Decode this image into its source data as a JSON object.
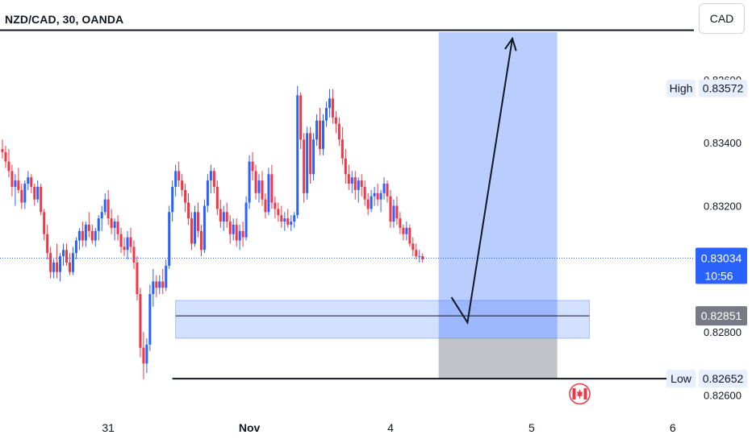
{
  "header": {
    "symbol_title": "NZD/CAD, 30, OANDA",
    "currency_button": "CAD"
  },
  "price_scale": {
    "high_label": "High",
    "high_value": "0.83572",
    "current_price": "0.83034",
    "countdown": "10:56",
    "marker_price": "0.82851",
    "low_label": "Low",
    "low_value": "0.82652"
  },
  "colors": {
    "up": "#2962ff",
    "down": "#f23645",
    "position_target": "#2962ff",
    "position_stop": "#787b86",
    "zone": "#2962ff",
    "current_price_badge": "#2962ff",
    "marker_badge": "#787b86",
    "event_flag": "#f23645"
  },
  "event_icon": "canada-flag-icon",
  "chart_data": {
    "type": "candlestick",
    "title": "NZD/CAD, 30, OANDA",
    "ylim": [
      0.8254,
      0.8375
    ],
    "yticks": [
      0.826,
      0.828,
      0.832,
      0.834,
      0.836
    ],
    "ytick_labels": [
      "0.82600",
      "0.82800",
      "0.83200",
      "0.83400",
      "0.83600"
    ],
    "x_ticks": [
      {
        "label": "31",
        "bar": 33
      },
      {
        "label": "Nov",
        "bar": 77
      },
      {
        "label": "4",
        "bar": 121
      },
      {
        "label": "5",
        "bar": 165
      },
      {
        "label": "6",
        "bar": 209
      }
    ],
    "grid": false,
    "candles": [
      [
        0.8338,
        0.8341,
        0.8335,
        0.8337
      ],
      [
        0.8337,
        0.8339,
        0.8332,
        0.8334
      ],
      [
        0.8334,
        0.8338,
        0.8329,
        0.8331
      ],
      [
        0.8331,
        0.8333,
        0.8323,
        0.8326
      ],
      [
        0.8326,
        0.833,
        0.832,
        0.8328
      ],
      [
        0.8328,
        0.8332,
        0.8324,
        0.8325
      ],
      [
        0.8325,
        0.8327,
        0.8319,
        0.8321
      ],
      [
        0.8321,
        0.8328,
        0.8319,
        0.8327
      ],
      [
        0.8327,
        0.8331,
        0.8325,
        0.8329
      ],
      [
        0.8329,
        0.833,
        0.8324,
        0.8326
      ],
      [
        0.8326,
        0.8327,
        0.832,
        0.8322
      ],
      [
        0.8322,
        0.8328,
        0.8321,
        0.8326
      ],
      [
        0.8326,
        0.8327,
        0.8317,
        0.8318
      ],
      [
        0.8318,
        0.8319,
        0.8309,
        0.8311
      ],
      [
        0.8311,
        0.8314,
        0.8303,
        0.8305
      ],
      [
        0.8305,
        0.8307,
        0.8297,
        0.8299
      ],
      [
        0.8299,
        0.8303,
        0.8297,
        0.8302
      ],
      [
        0.8302,
        0.8308,
        0.8297,
        0.8299
      ],
      [
        0.8299,
        0.8305,
        0.8296,
        0.8304
      ],
      [
        0.8304,
        0.8308,
        0.8301,
        0.8306
      ],
      [
        0.8306,
        0.8308,
        0.8301,
        0.8302
      ],
      [
        0.8302,
        0.8305,
        0.8298,
        0.8299
      ],
      [
        0.8299,
        0.8307,
        0.8298,
        0.8305
      ],
      [
        0.8305,
        0.831,
        0.8303,
        0.8309
      ],
      [
        0.8309,
        0.8313,
        0.8306,
        0.8312
      ],
      [
        0.8312,
        0.8315,
        0.8307,
        0.8309
      ],
      [
        0.8309,
        0.8315,
        0.8307,
        0.8314
      ],
      [
        0.8314,
        0.8318,
        0.831,
        0.8312
      ],
      [
        0.8312,
        0.8314,
        0.8308,
        0.8309
      ],
      [
        0.8309,
        0.8313,
        0.8307,
        0.8312
      ],
      [
        0.8312,
        0.8317,
        0.8309,
        0.8316
      ],
      [
        0.8316,
        0.832,
        0.8312,
        0.8318
      ],
      [
        0.8318,
        0.8324,
        0.8317,
        0.8322
      ],
      [
        0.8322,
        0.8325,
        0.8314,
        0.8316
      ],
      [
        0.8316,
        0.8319,
        0.8311,
        0.8313
      ],
      [
        0.8313,
        0.8316,
        0.8309,
        0.8315
      ],
      [
        0.8315,
        0.8317,
        0.8309,
        0.8311
      ],
      [
        0.8311,
        0.8313,
        0.8305,
        0.8307
      ],
      [
        0.8307,
        0.831,
        0.8304,
        0.8306
      ],
      [
        0.8306,
        0.8312,
        0.8303,
        0.831
      ],
      [
        0.831,
        0.8313,
        0.8305,
        0.8307
      ],
      [
        0.8307,
        0.8309,
        0.83,
        0.8302
      ],
      [
        0.8302,
        0.8304,
        0.829,
        0.8292
      ],
      [
        0.8292,
        0.8294,
        0.8272,
        0.8275
      ],
      [
        0.8275,
        0.828,
        0.8265,
        0.827
      ],
      [
        0.827,
        0.8278,
        0.8267,
        0.8276
      ],
      [
        0.8276,
        0.8295,
        0.8274,
        0.8292
      ],
      [
        0.8292,
        0.83,
        0.8288,
        0.8296
      ],
      [
        0.8296,
        0.8298,
        0.8291,
        0.8294
      ],
      [
        0.8294,
        0.8298,
        0.8292,
        0.8296
      ],
      [
        0.8296,
        0.83,
        0.8292,
        0.8294
      ],
      [
        0.8294,
        0.8303,
        0.8293,
        0.8301
      ],
      [
        0.8301,
        0.832,
        0.83,
        0.8318
      ],
      [
        0.8318,
        0.8328,
        0.8315,
        0.8326
      ],
      [
        0.8326,
        0.8333,
        0.8323,
        0.8331
      ],
      [
        0.8331,
        0.8334,
        0.8326,
        0.8328
      ],
      [
        0.8328,
        0.833,
        0.8323,
        0.8325
      ],
      [
        0.8325,
        0.8327,
        0.8318,
        0.8321
      ],
      [
        0.8321,
        0.8324,
        0.8314,
        0.8316
      ],
      [
        0.8316,
        0.8318,
        0.8306,
        0.8308
      ],
      [
        0.8308,
        0.832,
        0.8307,
        0.8318
      ],
      [
        0.8318,
        0.8321,
        0.831,
        0.8312
      ],
      [
        0.8312,
        0.8314,
        0.8304,
        0.8306
      ],
      [
        0.8306,
        0.8322,
        0.8305,
        0.832
      ],
      [
        0.832,
        0.833,
        0.8318,
        0.8328
      ],
      [
        0.8328,
        0.8333,
        0.8324,
        0.8331
      ],
      [
        0.8331,
        0.8332,
        0.8324,
        0.8326
      ],
      [
        0.8326,
        0.8328,
        0.8317,
        0.8319
      ],
      [
        0.8319,
        0.8322,
        0.8313,
        0.8315
      ],
      [
        0.8315,
        0.832,
        0.8312,
        0.8318
      ],
      [
        0.8318,
        0.8321,
        0.8313,
        0.8315
      ],
      [
        0.8315,
        0.8317,
        0.8308,
        0.8311
      ],
      [
        0.8311,
        0.8316,
        0.8309,
        0.8314
      ],
      [
        0.8314,
        0.8316,
        0.8307,
        0.8309
      ],
      [
        0.8309,
        0.8314,
        0.8306,
        0.8312
      ],
      [
        0.8312,
        0.8315,
        0.8307,
        0.831
      ],
      [
        0.831,
        0.8323,
        0.8309,
        0.8321
      ],
      [
        0.8321,
        0.8336,
        0.8319,
        0.8334
      ],
      [
        0.8334,
        0.8337,
        0.8328,
        0.8331
      ],
      [
        0.8331,
        0.8333,
        0.8322,
        0.8324
      ],
      [
        0.8324,
        0.833,
        0.8321,
        0.8328
      ],
      [
        0.8328,
        0.8331,
        0.832,
        0.8322
      ],
      [
        0.8322,
        0.8324,
        0.8316,
        0.8318
      ],
      [
        0.8318,
        0.8332,
        0.8317,
        0.833
      ],
      [
        0.833,
        0.8333,
        0.8319,
        0.8321
      ],
      [
        0.8321,
        0.8323,
        0.8316,
        0.8319
      ],
      [
        0.8319,
        0.8321,
        0.8315,
        0.8317
      ],
      [
        0.8317,
        0.832,
        0.8313,
        0.8315
      ],
      [
        0.8315,
        0.8318,
        0.8312,
        0.8316
      ],
      [
        0.8316,
        0.8319,
        0.8313,
        0.8314
      ],
      [
        0.8314,
        0.8317,
        0.8312,
        0.8315
      ],
      [
        0.8315,
        0.8318,
        0.8313,
        0.8317
      ],
      [
        0.8317,
        0.8358,
        0.8316,
        0.8355
      ],
      [
        0.8355,
        0.8356,
        0.8338,
        0.8341
      ],
      [
        0.8341,
        0.8343,
        0.8321,
        0.8324
      ],
      [
        0.8324,
        0.8345,
        0.8322,
        0.8343
      ],
      [
        0.8343,
        0.8345,
        0.8327,
        0.833
      ],
      [
        0.833,
        0.8343,
        0.8328,
        0.8341
      ],
      [
        0.8341,
        0.8349,
        0.8339,
        0.8347
      ],
      [
        0.8347,
        0.8351,
        0.8336,
        0.8338
      ],
      [
        0.8338,
        0.8349,
        0.8336,
        0.8347
      ],
      [
        0.8347,
        0.8353,
        0.8345,
        0.8351
      ],
      [
        0.8351,
        0.8357,
        0.8348,
        0.8354
      ],
      [
        0.8354,
        0.8357,
        0.8346,
        0.8348
      ],
      [
        0.8348,
        0.835,
        0.8343,
        0.8346
      ],
      [
        0.8346,
        0.8348,
        0.8339,
        0.8341
      ],
      [
        0.8341,
        0.8345,
        0.8333,
        0.8335
      ],
      [
        0.8335,
        0.8338,
        0.8327,
        0.833
      ],
      [
        0.833,
        0.8333,
        0.8325,
        0.8327
      ],
      [
        0.8327,
        0.8331,
        0.8324,
        0.8329
      ],
      [
        0.8329,
        0.8331,
        0.8322,
        0.8325
      ],
      [
        0.8325,
        0.8329,
        0.8321,
        0.8328
      ],
      [
        0.8328,
        0.833,
        0.8323,
        0.8326
      ],
      [
        0.8326,
        0.8328,
        0.832,
        0.8322
      ],
      [
        0.8322,
        0.8324,
        0.8317,
        0.8319
      ],
      [
        0.8319,
        0.8325,
        0.8318,
        0.8323
      ],
      [
        0.8323,
        0.8326,
        0.832,
        0.8324
      ],
      [
        0.8324,
        0.8327,
        0.832,
        0.8322
      ],
      [
        0.8322,
        0.8325,
        0.8318,
        0.8324
      ],
      [
        0.8324,
        0.8329,
        0.8322,
        0.8327
      ],
      [
        0.8327,
        0.8328,
        0.8321,
        0.8323
      ],
      [
        0.8323,
        0.8325,
        0.8313,
        0.8315
      ],
      [
        0.8315,
        0.8322,
        0.8313,
        0.832
      ],
      [
        0.832,
        0.8323,
        0.8314,
        0.8316
      ],
      [
        0.8316,
        0.8318,
        0.8311,
        0.8313
      ],
      [
        0.8313,
        0.8314,
        0.8309,
        0.8311
      ],
      [
        0.8311,
        0.8315,
        0.8309,
        0.8313
      ],
      [
        0.8313,
        0.8314,
        0.8307,
        0.8308
      ],
      [
        0.8308,
        0.831,
        0.8304,
        0.8306
      ],
      [
        0.8306,
        0.8308,
        0.8303,
        0.8304
      ],
      [
        0.8304,
        0.8306,
        0.8302,
        0.8304
      ],
      [
        0.8304,
        0.8305,
        0.8302,
        0.8303
      ]
    ],
    "annotations": {
      "high_level": 0.83572,
      "low_level": 0.82652,
      "demand_zone": [
        0.8278,
        0.829
      ],
      "zone_line": 0.82851,
      "long_position": {
        "entry": 0.8278,
        "target": 0.8375,
        "stop": 0.82652
      },
      "arrow_path": [
        {
          "bar": 140,
          "price": 0.8291
        },
        {
          "bar": 145,
          "price": 0.8283
        },
        {
          "bar": 159,
          "price": 0.8373
        }
      ],
      "event_marker_bar": 180
    }
  }
}
